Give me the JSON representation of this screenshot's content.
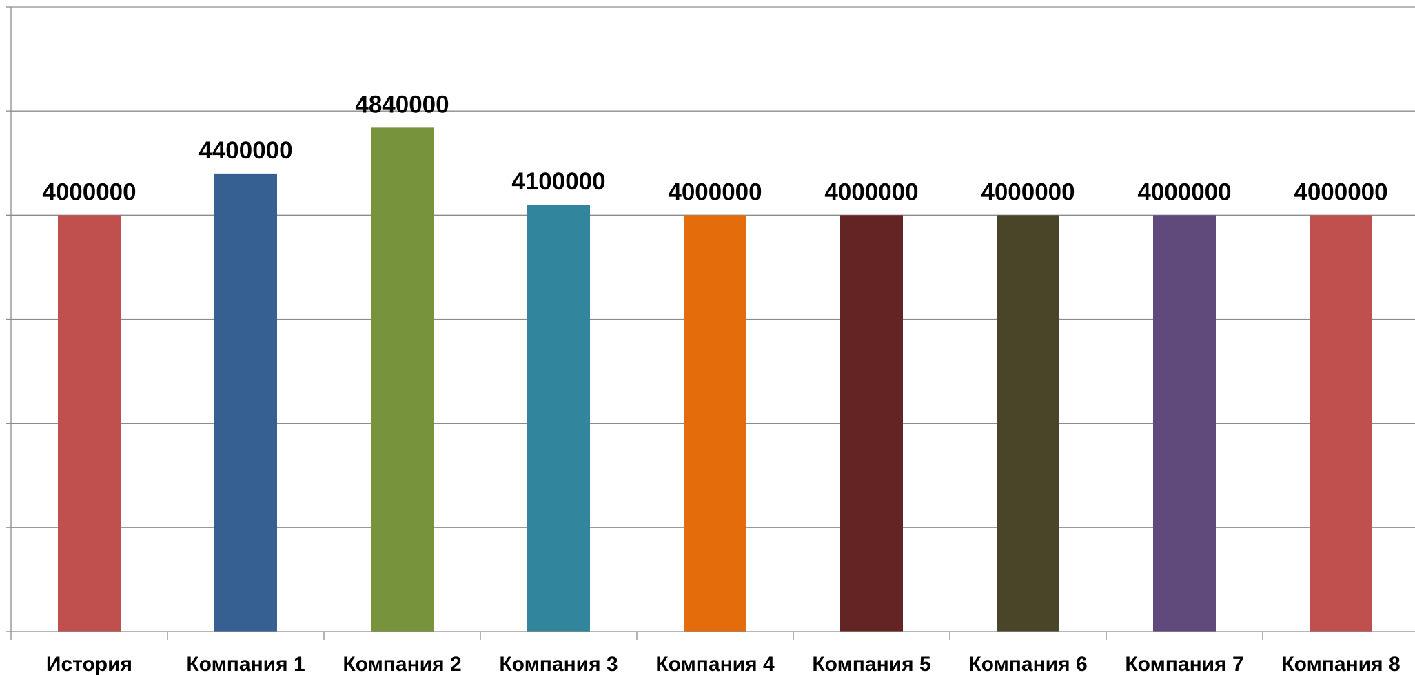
{
  "chart_data": {
    "type": "bar",
    "title": "",
    "xlabel": "",
    "ylabel": "",
    "categories": [
      "История",
      "Компания 1",
      "Компания 2",
      "Компания 3",
      "Компания 4",
      "Компания 5",
      "Компания 6",
      "Компания 7",
      "Компания 8"
    ],
    "values": [
      4000000,
      4400000,
      4840000,
      4100000,
      4000000,
      4000000,
      4000000,
      4000000,
      4000000
    ],
    "data_labels": [
      "4000000",
      "4400000",
      "4840000",
      "4100000",
      "4000000",
      "4000000",
      "4000000",
      "4000000",
      "4000000"
    ],
    "colors": [
      "#c0504d",
      "#376092",
      "#77933c",
      "#31859c",
      "#e46c0a",
      "#632523",
      "#494529",
      "#604a7b",
      "#c0504d"
    ],
    "ylim": [
      0,
      6000000
    ],
    "y_gridline_step": 1000000,
    "y_tick_labels_visible": false,
    "grid": true,
    "legend": "none"
  }
}
